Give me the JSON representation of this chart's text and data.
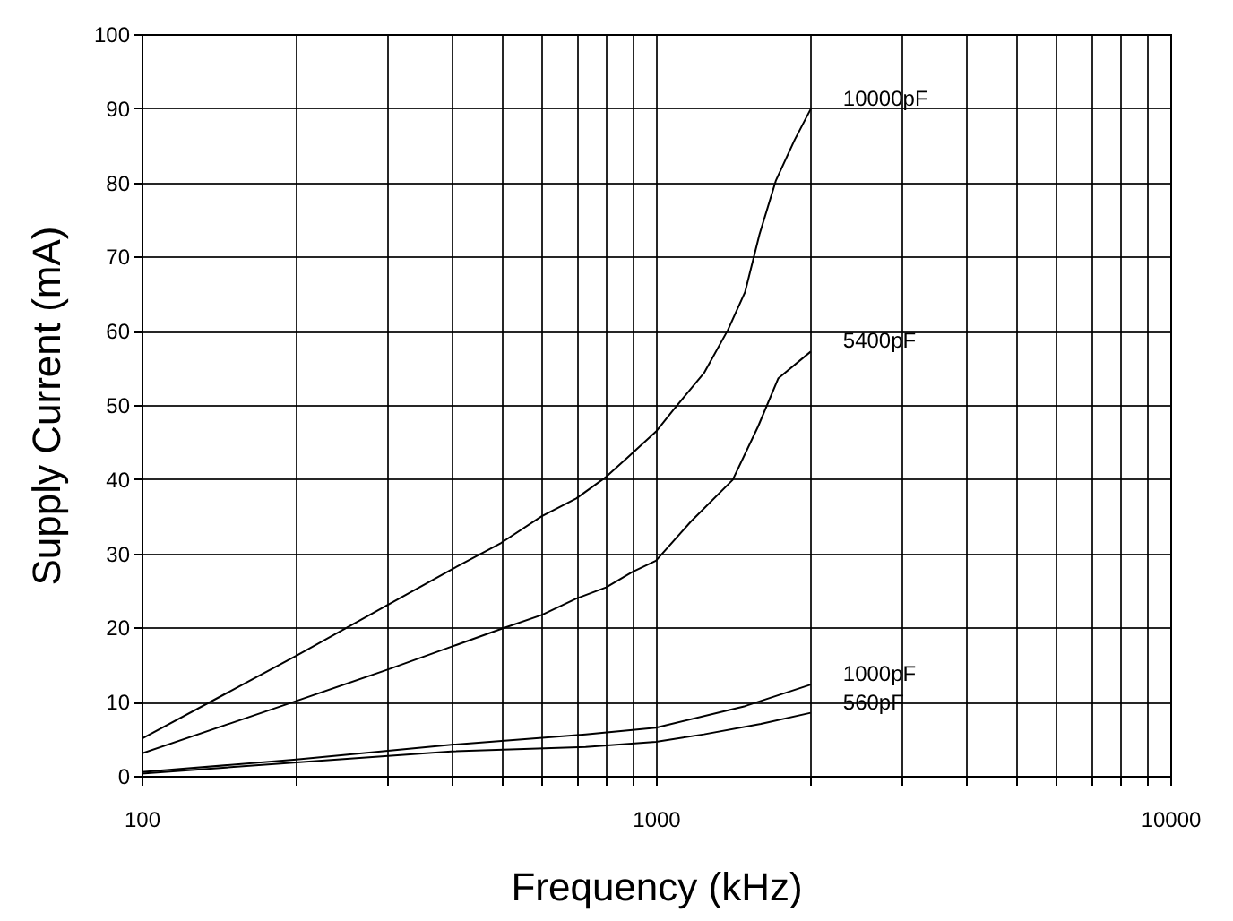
{
  "chart_data": {
    "type": "line",
    "xlabel": "Frequency (kHz)",
    "ylabel": "Supply Current (mA)",
    "log": "x",
    "grid": true,
    "legend": false,
    "marker": "none",
    "line_style": "solid",
    "xlim": [
      100,
      10000
    ],
    "ylim": [
      0,
      100
    ],
    "xticks": [
      100,
      {
        "value": 200,
        "label": null
      },
      {
        "value": 300,
        "label": null
      },
      {
        "value": 400,
        "label": null
      },
      {
        "value": 500,
        "label": null
      },
      {
        "value": 600,
        "label": null
      },
      {
        "value": 700,
        "label": null
      },
      {
        "value": 800,
        "label": null
      },
      {
        "value": 900,
        "label": null
      },
      1000,
      {
        "value": 2000,
        "label": null
      },
      {
        "value": 3000,
        "label": null
      },
      {
        "value": 4000,
        "label": null
      },
      {
        "value": 5000,
        "label": null
      },
      {
        "value": 6000,
        "label": null
      },
      {
        "value": 7000,
        "label": null
      },
      {
        "value": 8000,
        "label": null
      },
      {
        "value": 9000,
        "label": null
      },
      10000
    ],
    "yticks": [
      0,
      10,
      20,
      30,
      40,
      50,
      60,
      70,
      80,
      90,
      100
    ],
    "series": [
      {
        "name": "10000pF",
        "color": "#000000",
        "x": [
          100,
          200,
          300,
          400,
          500,
          600,
          700,
          800,
          900,
          1000,
          1080,
          1240,
          1380,
          1490,
          1590,
          1710,
          1860,
          2000
        ],
        "values": [
          5,
          16.2,
          23,
          27.8,
          31.4,
          35,
          37.4,
          40.3,
          43.5,
          46.4,
          49.3,
          54.3,
          60.1,
          65.2,
          73,
          80.2,
          85.7,
          89.9
        ]
      },
      {
        "name": "5400pF",
        "color": "#000000",
        "x": [
          100,
          200,
          300,
          400,
          500,
          600,
          700,
          800,
          900,
          1000,
          1170,
          1410,
          1580,
          1730,
          2000
        ],
        "values": [
          3,
          10.1,
          14.3,
          17.4,
          19.8,
          21.7,
          23.9,
          25.4,
          27.5,
          29,
          34.3,
          39.9,
          47.1,
          53.6,
          57.2
        ]
      },
      {
        "name": "1000pF",
        "color": "#000000",
        "x": [
          100,
          200,
          400,
          730,
          1000,
          1490,
          2000
        ],
        "values": [
          0.5,
          2.2,
          4.2,
          5.6,
          6.5,
          9.4,
          12.3
        ]
      },
      {
        "name": "560pF",
        "color": "#000000",
        "x": [
          100,
          200,
          400,
          730,
          1000,
          1240,
          1600,
          2000
        ],
        "values": [
          0.3,
          1.8,
          3.3,
          3.9,
          4.6,
          5.6,
          7,
          8.5
        ]
      }
    ]
  }
}
